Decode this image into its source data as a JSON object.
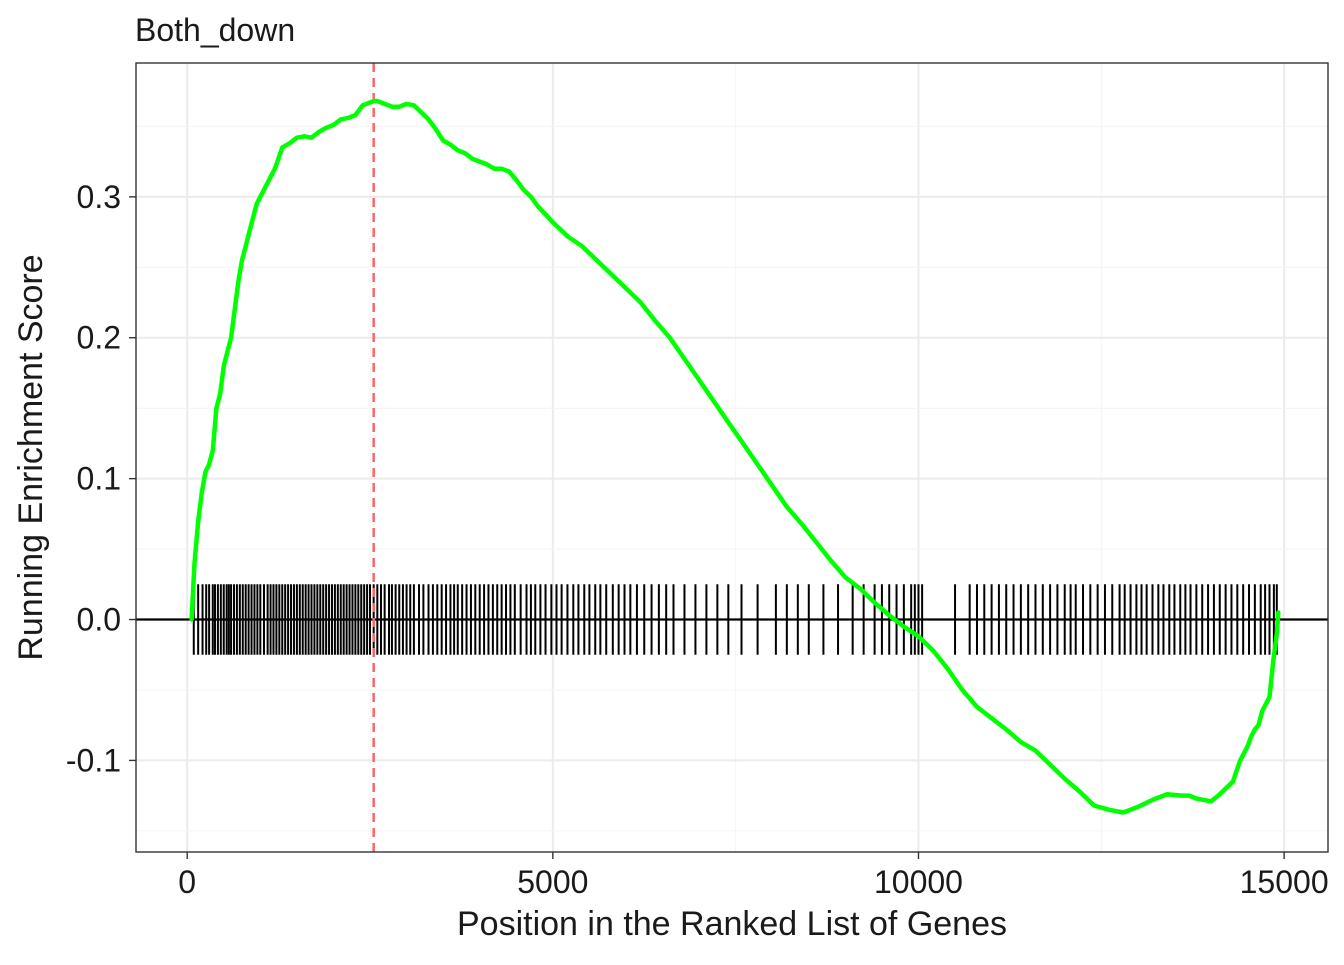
{
  "chart_data": {
    "type": "line",
    "title": "Both_down",
    "xlabel": "Position in the Ranked List of Genes",
    "ylabel": "Running Enrichment Score",
    "xlim": [
      -700,
      15600
    ],
    "ylim": [
      -0.165,
      0.395
    ],
    "x_ticks": [
      0,
      5000,
      10000,
      15000
    ],
    "y_ticks": [
      -0.1,
      0.0,
      0.1,
      0.2,
      0.3
    ],
    "x_tick_labels": [
      "0",
      "5000",
      "10000",
      "15000"
    ],
    "y_tick_labels": [
      "-0.1",
      "0.0",
      "0.1",
      "0.2",
      "0.3"
    ],
    "grid": true,
    "legend": "none",
    "series": [
      {
        "color": "#00ff00",
        "x": [
          60,
          100,
          150,
          200,
          250,
          300,
          350,
          400,
          450,
          500,
          550,
          600,
          650,
          700,
          750,
          800,
          850,
          900,
          950,
          1000,
          1100,
          1200,
          1300,
          1400,
          1500,
          1600,
          1700,
          1800,
          1900,
          2000,
          2100,
          2200,
          2300,
          2400,
          2500,
          2550,
          2600,
          2700,
          2800,
          2900,
          3000,
          3100,
          3200,
          3300,
          3400,
          3500,
          3600,
          3700,
          3800,
          3900,
          4000,
          4100,
          4200,
          4300,
          4400,
          4500,
          4600,
          4700,
          4800,
          5000,
          5200,
          5400,
          5600,
          5800,
          6000,
          6200,
          6400,
          6600,
          6800,
          7000,
          7200,
          7400,
          7600,
          7800,
          8000,
          8200,
          8400,
          8600,
          8800,
          9000,
          9200,
          9400,
          9600,
          9800,
          10000,
          10200,
          10400,
          10600,
          10800,
          11000,
          11200,
          11400,
          11600,
          11800,
          12000,
          12200,
          12400,
          12600,
          12800,
          12900,
          13000,
          13200,
          13400,
          13600,
          13700,
          13800,
          13900,
          14000,
          14100,
          14200,
          14300,
          14400,
          14500,
          14550,
          14600,
          14650,
          14700,
          14750,
          14800,
          14850,
          14900,
          14920
        ],
        "values": [
          0.0,
          0.04,
          0.07,
          0.09,
          0.105,
          0.11,
          0.12,
          0.15,
          0.16,
          0.18,
          0.19,
          0.2,
          0.22,
          0.24,
          0.255,
          0.265,
          0.275,
          0.285,
          0.295,
          0.3,
          0.31,
          0.32,
          0.335,
          0.338,
          0.342,
          0.343,
          0.342,
          0.346,
          0.349,
          0.351,
          0.355,
          0.356,
          0.358,
          0.365,
          0.367,
          0.368,
          0.368,
          0.366,
          0.364,
          0.364,
          0.366,
          0.365,
          0.36,
          0.355,
          0.348,
          0.34,
          0.337,
          0.333,
          0.331,
          0.327,
          0.325,
          0.323,
          0.32,
          0.32,
          0.318,
          0.312,
          0.305,
          0.3,
          0.293,
          0.282,
          0.272,
          0.265,
          0.255,
          0.245,
          0.235,
          0.225,
          0.212,
          0.2,
          0.185,
          0.17,
          0.155,
          0.14,
          0.125,
          0.11,
          0.095,
          0.08,
          0.068,
          0.055,
          0.042,
          0.03,
          0.022,
          0.012,
          0.003,
          -0.005,
          -0.012,
          -0.022,
          -0.035,
          -0.05,
          -0.062,
          -0.07,
          -0.078,
          -0.087,
          -0.093,
          -0.103,
          -0.113,
          -0.122,
          -0.132,
          -0.135,
          -0.137,
          -0.135,
          -0.133,
          -0.128,
          -0.124,
          -0.125,
          -0.125,
          -0.127,
          -0.128,
          -0.129,
          -0.125,
          -0.12,
          -0.115,
          -0.1,
          -0.09,
          -0.083,
          -0.078,
          -0.075,
          -0.065,
          -0.06,
          -0.055,
          -0.03,
          -0.01,
          0.005
        ]
      }
    ],
    "peak_line": {
      "x": 2550,
      "color": "#f8666a",
      "style": "dashed"
    },
    "gene_hits": {
      "color": "#000000",
      "ymin": -0.025,
      "ymax": 0.025,
      "x": [
        90,
        150,
        210,
        260,
        300,
        350,
        380,
        420,
        460,
        500,
        540,
        570,
        600,
        640,
        680,
        720,
        760,
        800,
        840,
        880,
        920,
        960,
        1000,
        1050,
        1100,
        1140,
        1180,
        1220,
        1260,
        1300,
        1340,
        1380,
        1420,
        1460,
        1500,
        1540,
        1580,
        1620,
        1660,
        1700,
        1740,
        1780,
        1820,
        1860,
        1900,
        1940,
        1980,
        2020,
        2060,
        2100,
        2140,
        2180,
        2220,
        2260,
        2300,
        2340,
        2380,
        2420,
        2460,
        2500,
        2550,
        2600,
        2650,
        2700,
        2760,
        2800,
        2850,
        2900,
        2950,
        3000,
        3050,
        3100,
        3170,
        3230,
        3300,
        3360,
        3420,
        3480,
        3540,
        3600,
        3650,
        3700,
        3760,
        3820,
        3880,
        3940,
        4000,
        4060,
        4120,
        4180,
        4240,
        4300,
        4360,
        4420,
        4480,
        4560,
        4640,
        4700,
        4760,
        4830,
        4900,
        4980,
        5050,
        5120,
        5200,
        5280,
        5350,
        5430,
        5500,
        5580,
        5650,
        5730,
        5820,
        5900,
        5980,
        6060,
        6150,
        6250,
        6350,
        6450,
        6550,
        6650,
        6800,
        6950,
        7100,
        7250,
        7400,
        7580,
        7800,
        8050,
        8200,
        8350,
        8500,
        8700,
        8900,
        9100,
        9250,
        9400,
        9500,
        9600,
        9700,
        9800,
        9900,
        9950,
        10000,
        10050,
        10500,
        10700,
        10800,
        10900,
        11000,
        11100,
        11200,
        11300,
        11400,
        11500,
        11600,
        11700,
        11800,
        11900,
        12000,
        12080,
        12150,
        12250,
        12350,
        12450,
        12550,
        12650,
        12750,
        12820,
        12900,
        12980,
        13050,
        13120,
        13200,
        13280,
        13350,
        13430,
        13500,
        13580,
        13650,
        13720,
        13800,
        13880,
        13960,
        14040,
        14120,
        14200,
        14280,
        14360,
        14440,
        14520,
        14600,
        14680,
        14740,
        14800,
        14860,
        14900
      ]
    }
  }
}
